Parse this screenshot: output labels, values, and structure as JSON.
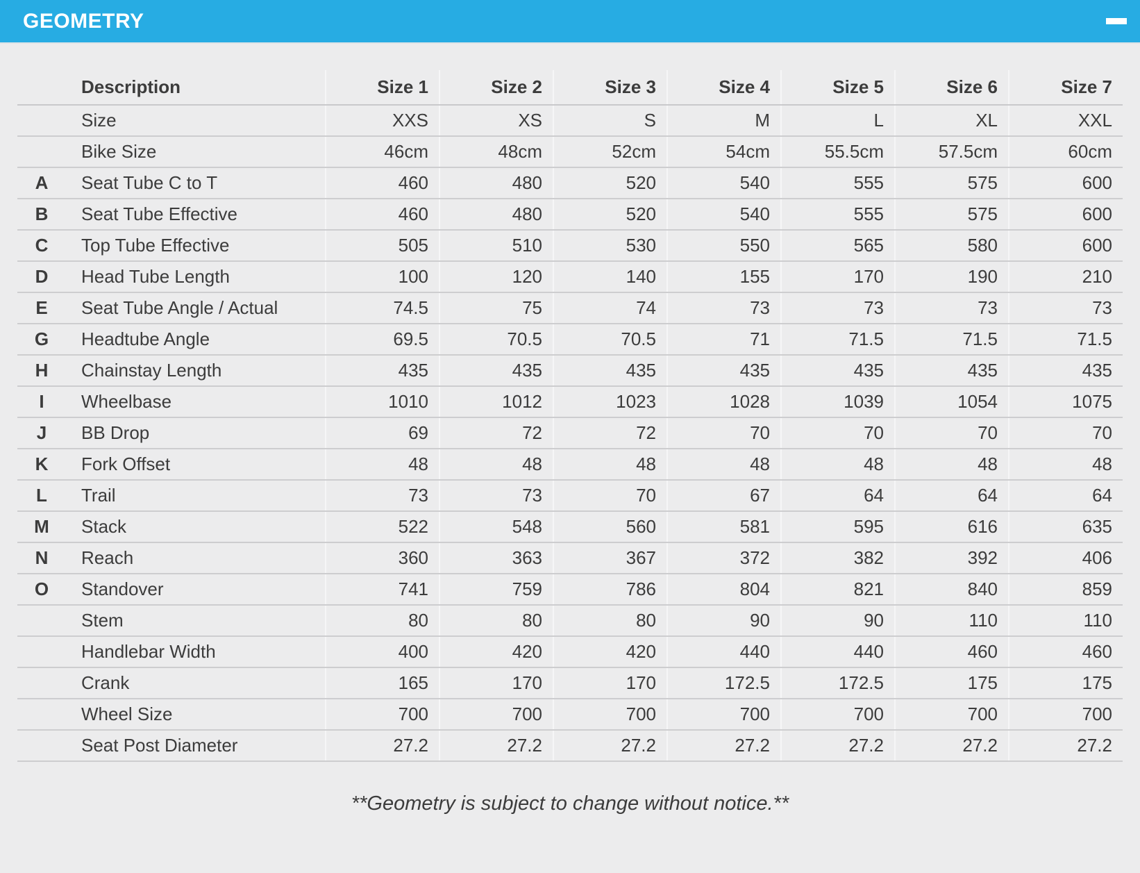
{
  "header": {
    "title": "GEOMETRY",
    "collapse_icon": "minus-icon"
  },
  "colors": {
    "accent_blue": "#27ACE3",
    "page_background": "#ECECED",
    "text": "#3C3C3C",
    "row_separator": "#CDCDCF"
  },
  "table": {
    "columns": [
      "Description",
      "Size 1",
      "Size 2",
      "Size 3",
      "Size 4",
      "Size 5",
      "Size 6",
      "Size 7"
    ],
    "rows": [
      {
        "letter": "",
        "label": "Size",
        "values": [
          "XXS",
          "XS",
          "S",
          "M",
          "L",
          "XL",
          "XXL"
        ]
      },
      {
        "letter": "",
        "label": "Bike Size",
        "values": [
          "46cm",
          "48cm",
          "52cm",
          "54cm",
          "55.5cm",
          "57.5cm",
          "60cm"
        ]
      },
      {
        "letter": "A",
        "label": "Seat Tube C to T",
        "values": [
          "460",
          "480",
          "520",
          "540",
          "555",
          "575",
          "600"
        ]
      },
      {
        "letter": "B",
        "label": "Seat Tube Effective",
        "values": [
          "460",
          "480",
          "520",
          "540",
          "555",
          "575",
          "600"
        ]
      },
      {
        "letter": "C",
        "label": "Top Tube Effective",
        "values": [
          "505",
          "510",
          "530",
          "550",
          "565",
          "580",
          "600"
        ]
      },
      {
        "letter": "D",
        "label": "Head Tube Length",
        "values": [
          "100",
          "120",
          "140",
          "155",
          "170",
          "190",
          "210"
        ]
      },
      {
        "letter": "E",
        "label": "Seat Tube Angle / Actual",
        "values": [
          "74.5",
          "75",
          "74",
          "73",
          "73",
          "73",
          "73"
        ]
      },
      {
        "letter": "G",
        "label": "Headtube Angle",
        "values": [
          "69.5",
          "70.5",
          "70.5",
          "71",
          "71.5",
          "71.5",
          "71.5"
        ]
      },
      {
        "letter": "H",
        "label": "Chainstay Length",
        "values": [
          "435",
          "435",
          "435",
          "435",
          "435",
          "435",
          "435"
        ]
      },
      {
        "letter": "I",
        "label": "Wheelbase",
        "values": [
          "1010",
          "1012",
          "1023",
          "1028",
          "1039",
          "1054",
          "1075"
        ]
      },
      {
        "letter": "J",
        "label": "BB Drop",
        "values": [
          "69",
          "72",
          "72",
          "70",
          "70",
          "70",
          "70"
        ]
      },
      {
        "letter": "K",
        "label": "Fork Offset",
        "values": [
          "48",
          "48",
          "48",
          "48",
          "48",
          "48",
          "48"
        ]
      },
      {
        "letter": "L",
        "label": "Trail",
        "values": [
          "73",
          "73",
          "70",
          "67",
          "64",
          "64",
          "64"
        ]
      },
      {
        "letter": "M",
        "label": "Stack",
        "values": [
          "522",
          "548",
          "560",
          "581",
          "595",
          "616",
          "635"
        ]
      },
      {
        "letter": "N",
        "label": "Reach",
        "values": [
          "360",
          "363",
          "367",
          "372",
          "382",
          "392",
          "406"
        ]
      },
      {
        "letter": "O",
        "label": "Standover",
        "values": [
          "741",
          "759",
          "786",
          "804",
          "821",
          "840",
          "859"
        ]
      },
      {
        "letter": "",
        "label": "Stem",
        "values": [
          "80",
          "80",
          "80",
          "90",
          "90",
          "110",
          "110"
        ]
      },
      {
        "letter": "",
        "label": "Handlebar Width",
        "values": [
          "400",
          "420",
          "420",
          "440",
          "440",
          "460",
          "460"
        ]
      },
      {
        "letter": "",
        "label": "Crank",
        "values": [
          "165",
          "170",
          "170",
          "172.5",
          "172.5",
          "175",
          "175"
        ]
      },
      {
        "letter": "",
        "label": "Wheel Size",
        "values": [
          "700",
          "700",
          "700",
          "700",
          "700",
          "700",
          "700"
        ]
      },
      {
        "letter": "",
        "label": "Seat Post Diameter",
        "values": [
          "27.2",
          "27.2",
          "27.2",
          "27.2",
          "27.2",
          "27.2",
          "27.2"
        ]
      }
    ]
  },
  "footer": {
    "note": "**Geometry is subject to change without notice.**"
  }
}
